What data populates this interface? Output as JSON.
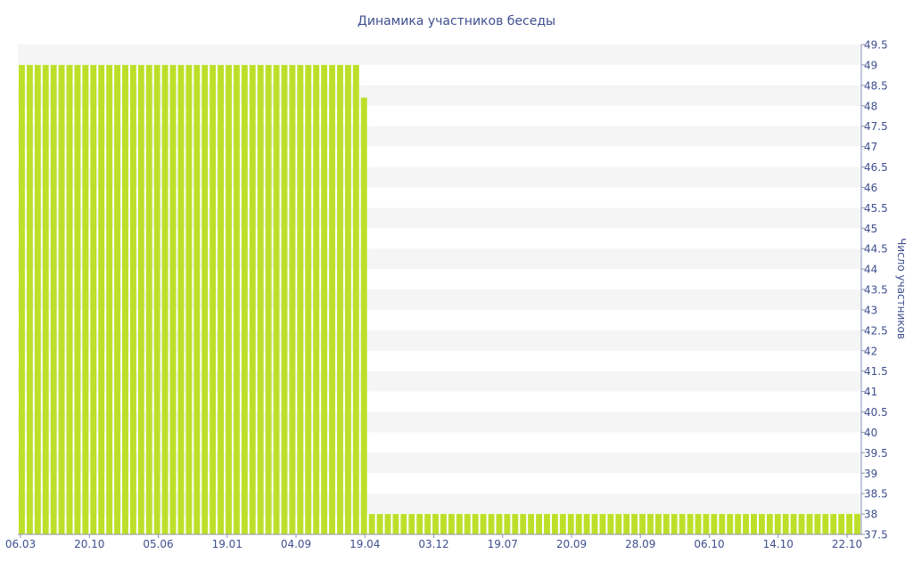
{
  "chart_data": {
    "type": "bar",
    "title": "Динамика участников беседы",
    "xlabel": "",
    "ylabel": "Число участников",
    "ylim": [
      37.5,
      49.5
    ],
    "y_ticks": [
      "37.5",
      "38",
      "38.5",
      "39",
      "39.5",
      "40",
      "40.5",
      "41",
      "41.5",
      "42",
      "42.5",
      "43",
      "43.5",
      "44",
      "44.5",
      "45",
      "45.5",
      "46",
      "46.5",
      "47",
      "47.5",
      "48",
      "48.5",
      "49",
      "49.5"
    ],
    "x_tick_labels": [
      "06.03",
      "20.10",
      "05.06",
      "19.01",
      "04.09",
      "19.04",
      "03.12",
      "19.07",
      "20.09",
      "28.09",
      "06.10",
      "14.10",
      "22.10"
    ],
    "y_axis_side": "right",
    "grid": "horizontal alternating bands",
    "bar_color": "#bedf2a",
    "band_color": "#f5f5f5",
    "text_color": "#3f4f8f",
    "values": [
      49,
      49,
      49,
      49,
      49,
      49,
      49,
      49,
      49,
      49,
      49,
      49,
      49,
      49,
      49,
      49,
      49,
      49,
      49,
      49,
      49,
      49,
      49,
      49,
      49,
      49,
      49,
      49,
      49,
      49,
      49,
      49,
      49,
      49,
      49,
      49,
      49,
      49,
      49,
      49,
      49,
      49,
      49,
      48.2,
      38,
      38,
      38,
      38,
      38,
      38,
      38,
      38,
      38,
      38,
      38,
      38,
      38,
      38,
      38,
      38,
      38,
      38,
      38,
      38,
      38,
      38,
      38,
      38,
      38,
      38,
      38,
      38,
      38,
      38,
      38,
      38,
      38,
      38,
      38,
      38,
      38,
      38,
      38,
      38,
      38,
      38,
      38,
      38,
      38,
      38,
      38,
      38,
      38,
      38,
      38,
      38,
      38,
      38,
      38,
      38,
      38,
      38,
      38,
      38,
      38,
      38
    ]
  }
}
